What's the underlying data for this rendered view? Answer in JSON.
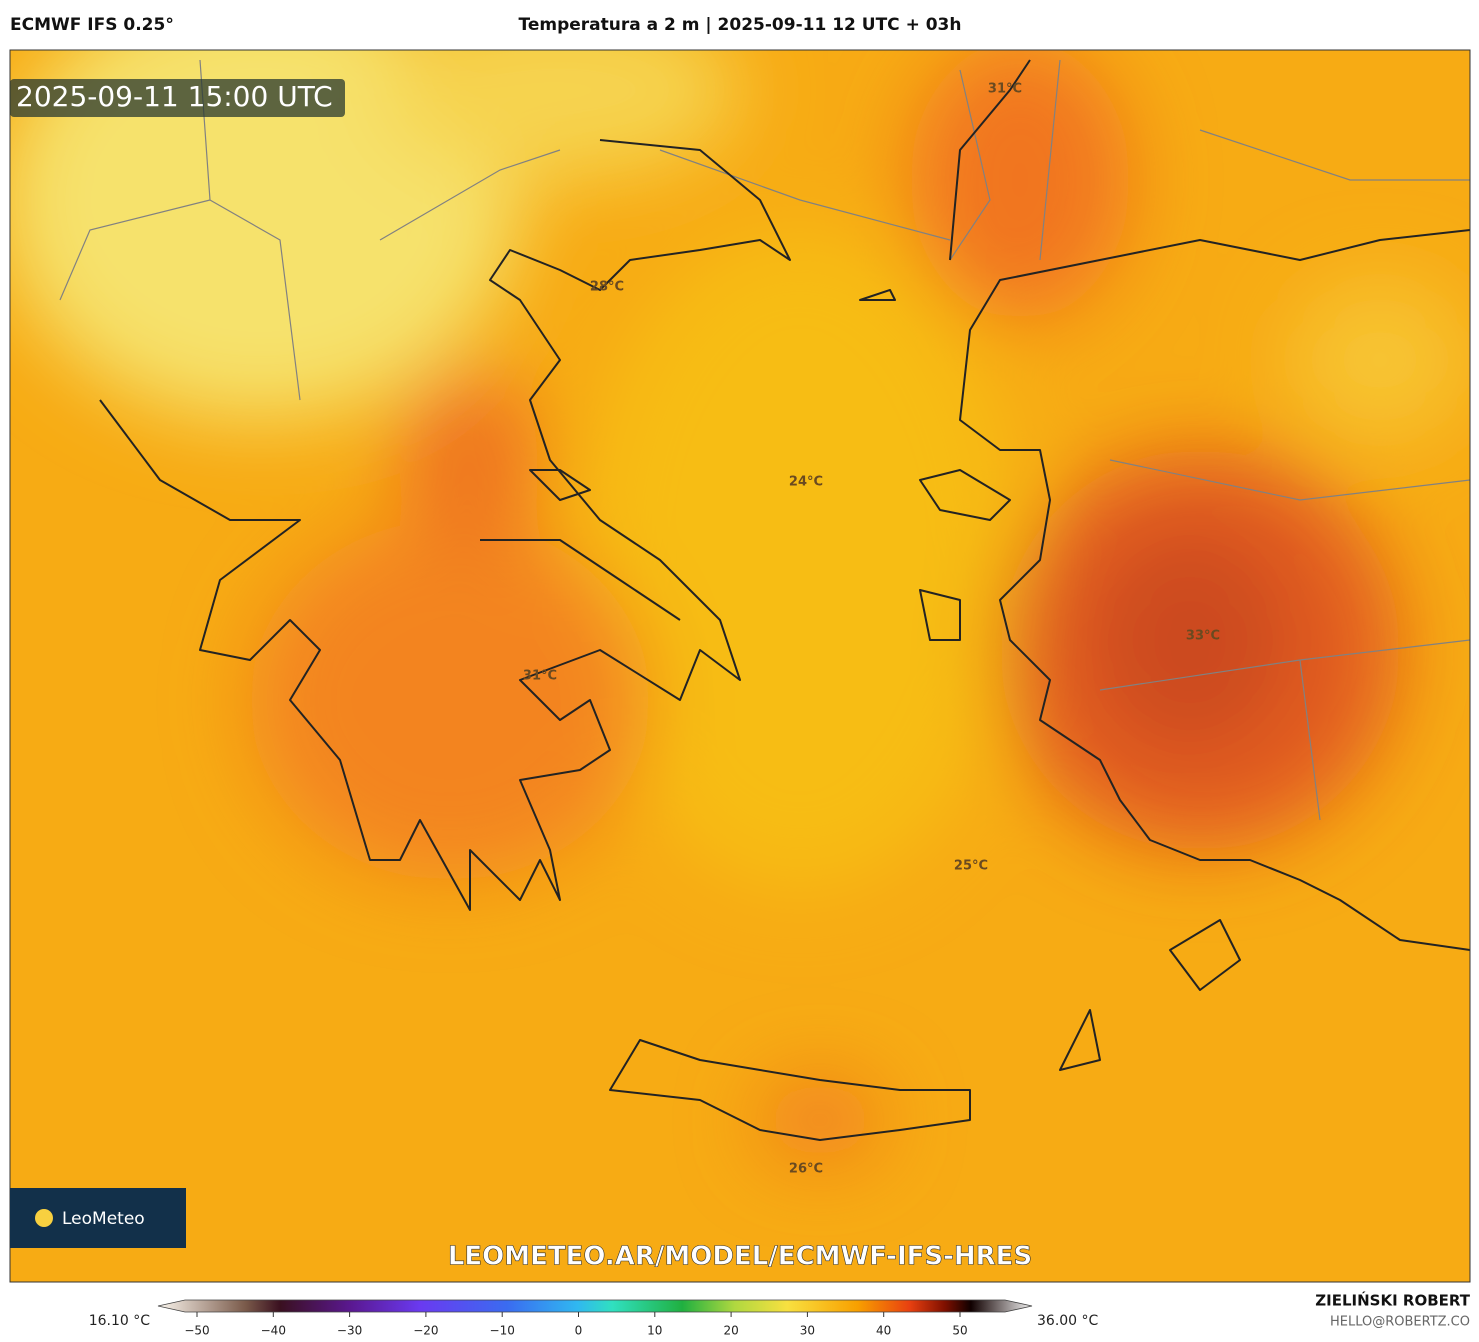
{
  "header": {
    "model": "ECMWF IFS 0.25°",
    "title": "Temperatura a 2 m | 2025-09-11 12 UTC + 03h"
  },
  "map": {
    "timestamp": "2025-09-11 15:00 UTC",
    "labels": [
      "31°C",
      "28°C",
      "24°C",
      "31°C",
      "33°C",
      "25°C",
      "26°C"
    ],
    "logo": "LeoMeteo",
    "url": "LEOMETEO.AR/MODEL/ECMWF-IFS-HRES"
  },
  "colorbar": {
    "min_label": "16.10 °C",
    "max_label": "36.00 °C",
    "ticks": [
      {
        "value": -50,
        "label": "−50"
      },
      {
        "value": -40,
        "label": "−40"
      },
      {
        "value": -30,
        "label": "−30"
      },
      {
        "value": -20,
        "label": "−20"
      },
      {
        "value": -10,
        "label": "−10"
      },
      0,
      10,
      20,
      30,
      40,
      50
    ]
  },
  "footer": {
    "author": "ZIELIŃSKI ROBERT",
    "email": "HELLO@ROBERTZ.CO"
  }
}
